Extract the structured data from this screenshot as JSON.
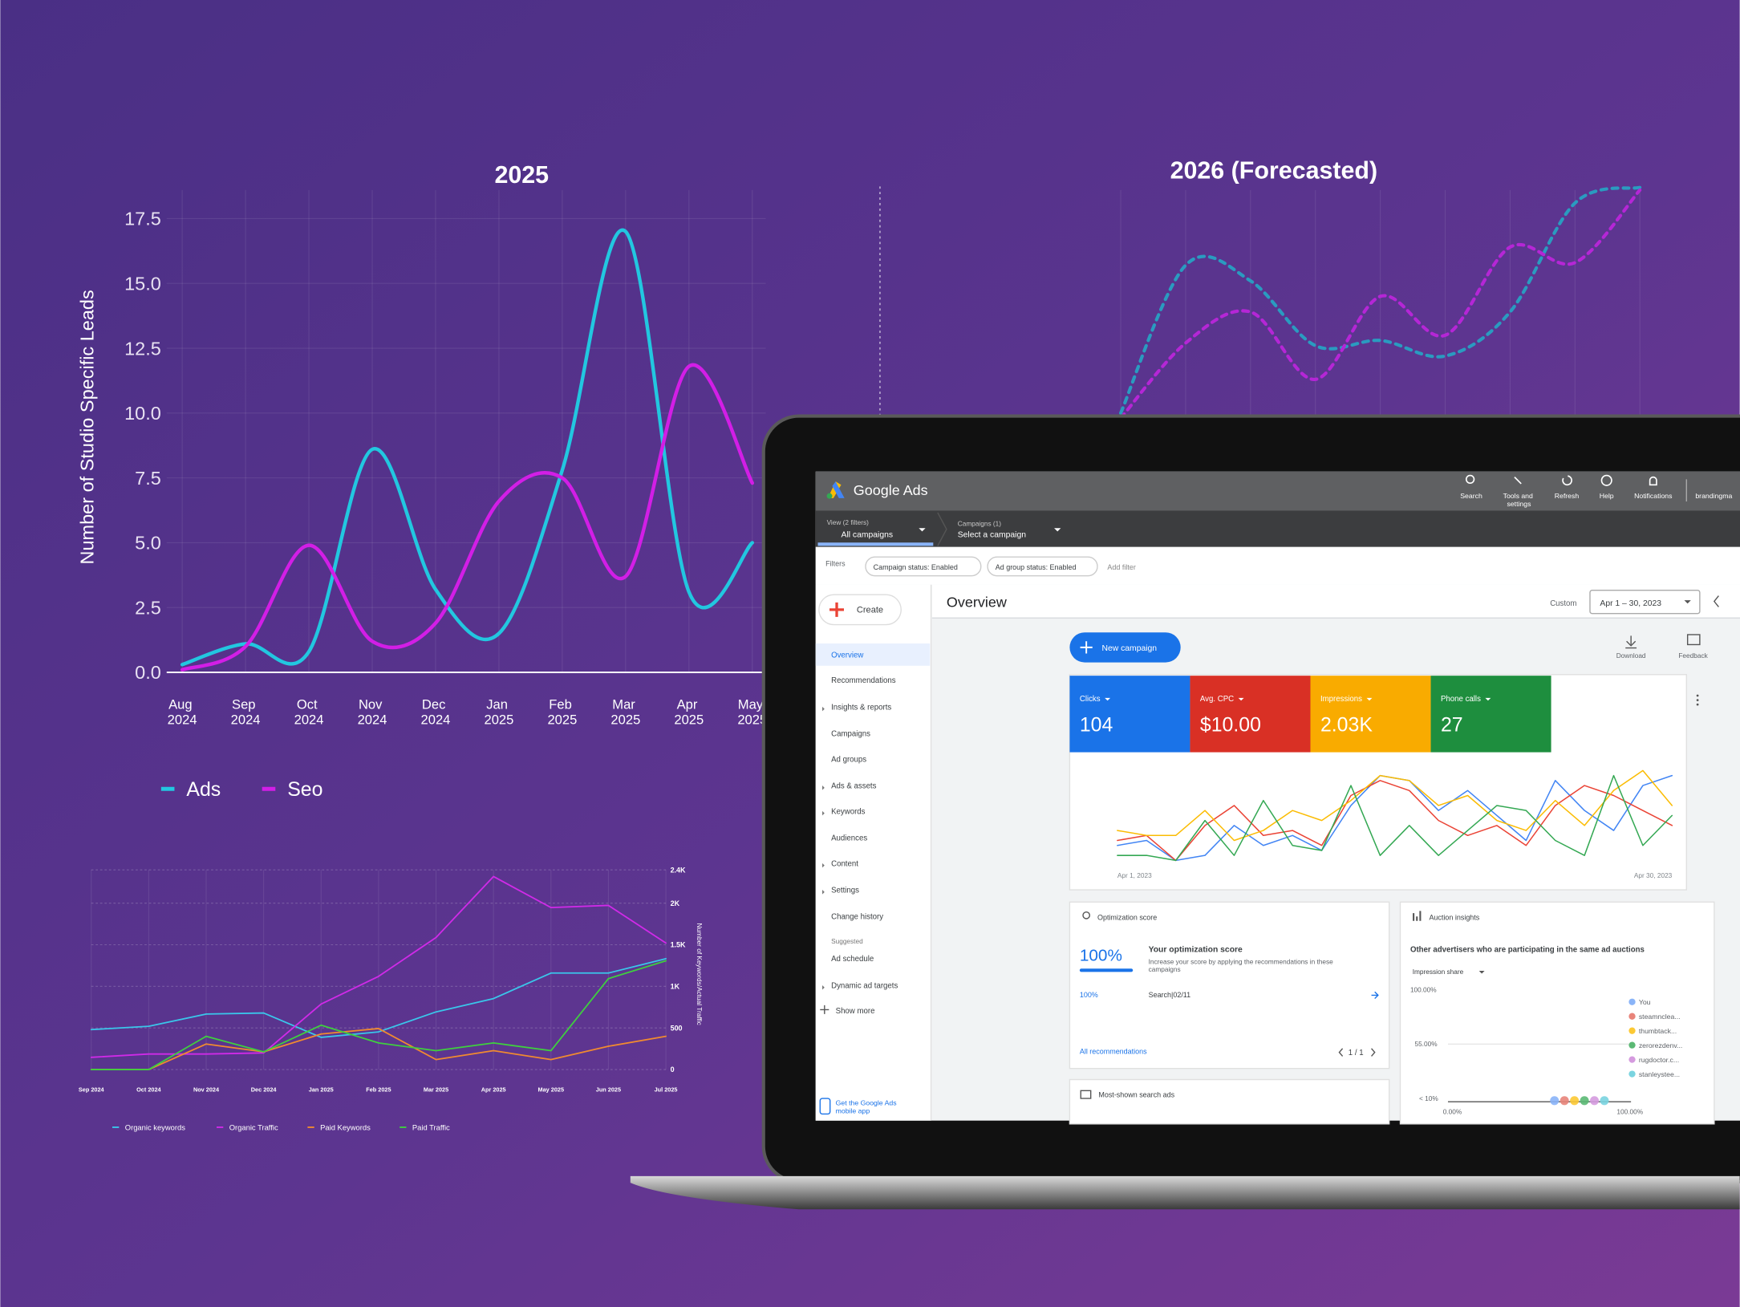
{
  "chart_data": [
    {
      "type": "line",
      "title": "2025",
      "y_label": "Number of Studio Specific  Leads",
      "smooth": true,
      "grid": true,
      "categories": [
        "Aug 2024",
        "Sep 2024",
        "Oct 2024",
        "Nov 2024",
        "Dec 2024",
        "Jan 2025",
        "Feb 2025",
        "Mar 2025",
        "Apr 2025",
        "May 2025"
      ],
      "series": [
        {
          "name": "Ads",
          "color": "#22c7e0",
          "values": [
            0.3,
            1.1,
            0.8,
            8.6,
            3.2,
            1.5,
            7.8,
            17.0,
            3.1,
            5.0
          ]
        },
        {
          "name": "Seo",
          "color": "#d21ee6",
          "values": [
            0.1,
            1.0,
            4.9,
            1.2,
            1.9,
            6.6,
            7.5,
            3.7,
            11.8,
            7.3
          ]
        }
      ],
      "ylim": [
        0,
        18.6
      ],
      "yticks": [
        {
          "value": 0,
          "label": "0.0"
        },
        2.5,
        {
          "value": 5,
          "label": "5.0"
        },
        7.5,
        {
          "value": 10,
          "label": "10.0"
        },
        12.5,
        {
          "value": 15,
          "label": "15.0"
        },
        17.5
      ]
    },
    {
      "type": "line",
      "title": "2026 (Forecasted)",
      "smooth": true,
      "line_style": "dashed",
      "grid": true,
      "categories": [
        null,
        null,
        null,
        null,
        null,
        null,
        null,
        null,
        null
      ],
      "series": [
        {
          "color": "#2a9bc0",
          "values": [
            10.0,
            15.7,
            15.1,
            12.6,
            12.8,
            12.2,
            13.9,
            18.1,
            18.7
          ]
        },
        {
          "color": "#b526d6",
          "values": [
            9.8,
            12.7,
            13.9,
            11.3,
            14.5,
            13.0,
            16.4,
            15.8,
            18.6
          ]
        }
      ],
      "ylim": [
        0,
        18.6
      ]
    },
    {
      "type": "line",
      "y_label": "Number of Keywords/Actual Traffic",
      "grid": true,
      "y_axis_side": "right",
      "categories": [
        "Sep 2024",
        "Oct 2024",
        "Nov 2024",
        "Dec 2024",
        "Jan 2025",
        "Feb 2025",
        "Mar 2025",
        "Apr 2025",
        "May 2025",
        "Jun 2025",
        "Jul 2025"
      ],
      "series": [
        {
          "name": "Organic keywords",
          "color": "#3ac6ea",
          "values": [
            480,
            520,
            667,
            680,
            387,
            453,
            693,
            853,
            1160,
            1160,
            1333
          ]
        },
        {
          "name": "Organic Traffic",
          "color": "#d02ae8",
          "values": [
            147,
            187,
            187,
            200,
            787,
            1120,
            1587,
            2320,
            1947,
            1973,
            1520
          ]
        },
        {
          "name": "Paid Keywords",
          "color": "#f08a30",
          "values": [
            0,
            0,
            307,
            213,
            427,
            493,
            120,
            227,
            120,
            280,
            400
          ]
        },
        {
          "name": "Paid Traffic",
          "color": "#3fcf3f",
          "values": [
            0,
            0,
            400,
            213,
            533,
            320,
            227,
            320,
            227,
            1093,
            1307
          ]
        }
      ],
      "ylim": [
        0,
        2400
      ],
      "yticks": [
        0,
        500,
        {
          "value": 1000,
          "label": "1K"
        },
        {
          "value": 1500,
          "label": "1.5K"
        },
        {
          "value": 2000,
          "label": "2K"
        },
        {
          "value": 2400,
          "label": "2.4K"
        }
      ]
    },
    {
      "type": "line",
      "grid": false,
      "categories": [
        "Apr 1, 2023",
        null,
        null,
        null,
        null,
        null,
        null,
        null,
        null,
        null,
        null,
        null,
        null,
        null,
        null,
        null,
        null,
        null,
        null,
        "Apr 30, 2023"
      ],
      "series": [
        {
          "color": "#4285f4",
          "values": [
            20,
            25,
            5,
            10,
            40,
            20,
            30,
            15,
            60,
            90,
            85,
            55,
            75,
            50,
            25,
            85,
            55,
            35,
            80,
            90
          ]
        },
        {
          "color": "#ea4335",
          "values": [
            25,
            30,
            5,
            40,
            60,
            30,
            35,
            20,
            70,
            85,
            75,
            45,
            30,
            40,
            20,
            60,
            80,
            70,
            55,
            40
          ]
        },
        {
          "color": "#fbbc04",
          "values": [
            35,
            30,
            30,
            55,
            25,
            35,
            55,
            45,
            65,
            90,
            85,
            60,
            70,
            45,
            35,
            65,
            40,
            75,
            95,
            60
          ]
        },
        {
          "color": "#34a853",
          "values": [
            10,
            10,
            5,
            45,
            10,
            65,
            20,
            15,
            80,
            10,
            40,
            10,
            35,
            60,
            55,
            25,
            10,
            90,
            20,
            50
          ]
        }
      ],
      "ylim": [
        0,
        100
      ]
    }
  ],
  "ui": {
    "brand": "Google Ads",
    "top_icons": [
      "Search",
      "Tools and settings",
      "Refresh",
      "Help",
      "Notifications"
    ],
    "account": "brandingma",
    "view_label": "View (2 filters)",
    "view_value": "All campaigns",
    "campaign_label": "Campaigns (1)",
    "campaign_value": "Select a campaign",
    "filters": {
      "label": "Filters",
      "chips": [
        "Campaign status: Enabled",
        "Ad group status: Enabled"
      ],
      "add": "Add filter"
    },
    "create": "Create",
    "nav": [
      "Overview",
      "Recommendations",
      "Insights & reports",
      "Campaigns",
      "Ad groups",
      "Ads & assets",
      "Keywords",
      "Audiences",
      "Content",
      "Settings",
      "Change history",
      "Suggested",
      "Ad schedule",
      "Dynamic ad targets",
      "Show more"
    ],
    "mobile_app": "Get the Google Ads mobile app",
    "page_title": "Overview",
    "date_mode": "Custom",
    "date_range": "Apr 1 – 30, 2023",
    "new_campaign": "New campaign",
    "download": "Download",
    "feedback": "Feedback",
    "metrics": [
      {
        "label": "Clicks",
        "value": "104"
      },
      {
        "label": "Avg. CPC",
        "value": "$10.00"
      },
      {
        "label": "Impressions",
        "value": "2.03K"
      },
      {
        "label": "Phone calls",
        "value": "27"
      }
    ],
    "optimization": {
      "title": "Optimization score",
      "score": "100%",
      "heading": "Your optimization score",
      "description": "Increase your score by applying the recommendations in these campaigns",
      "row_score": "100%",
      "row_campaign": "Search|02/11",
      "link": "All recommendations",
      "pager": "1 / 1"
    },
    "auction": {
      "title": "Auction insights",
      "subtitle": "Other advertisers who are participating in the same ad auctions",
      "metric": "Impression share",
      "y_labels": [
        "100.00%",
        "55.00%",
        "< 10%"
      ],
      "x_labels": [
        "0.00%",
        "100.00%"
      ],
      "advertisers": [
        "You",
        "steamnclea...",
        "thumbtack...",
        "zerorezdenv...",
        "rugdoctor.c...",
        "stanleystee..."
      ]
    },
    "most_shown": "Most-shown search ads"
  }
}
